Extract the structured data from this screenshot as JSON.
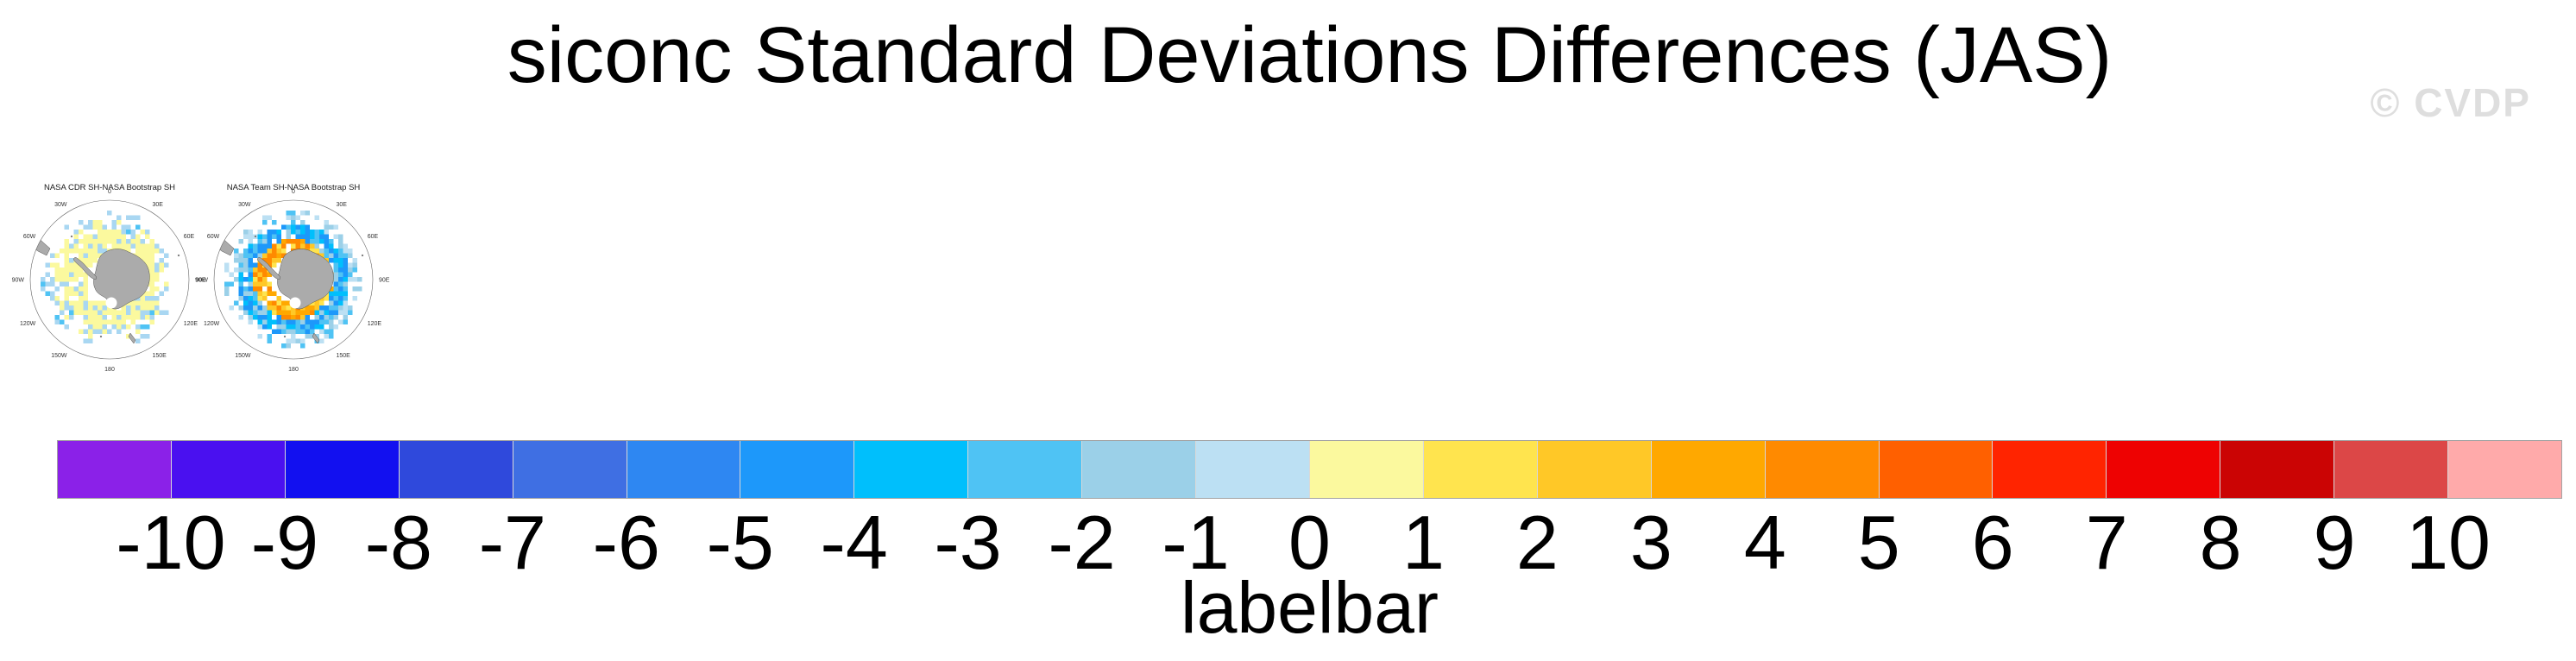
{
  "title": "siconc Standard Deviations Differences (JAS)",
  "watermark": "© CVDP",
  "land_color": "#ABABAB",
  "panels": [
    {
      "title": "NASA CDR SH-NASA Bootstrap SH",
      "bands": [
        {
          "r0": 0.3,
          "r1": 0.62,
          "density": 0.92,
          "colors": [
            [
              "#FBF99E",
              0.85
            ],
            [
              "#A9D7F2",
              0.15
            ]
          ]
        },
        {
          "r0": 0.62,
          "r1": 0.76,
          "density": 0.55,
          "colors": [
            [
              "#FBF99E",
              0.5
            ],
            [
              "#A9D7F2",
              0.45
            ],
            [
              "#4FC3F4",
              0.05
            ]
          ]
        },
        {
          "r0": 0.76,
          "r1": 0.88,
          "density": 0.18,
          "colors": [
            [
              "#A9D7F2",
              0.9
            ],
            [
              "#4FC3F4",
              0.1
            ]
          ]
        }
      ]
    },
    {
      "title": "NASA Team SH-NASA Bootstrap SH",
      "bands": [
        {
          "r0": 0.28,
          "r1": 0.5,
          "density": 0.95,
          "colors": [
            [
              "#FFC827",
              0.35
            ],
            [
              "#FFA800",
              0.25
            ],
            [
              "#FFE44E",
              0.25
            ],
            [
              "#FF8A00",
              0.15
            ]
          ],
          "bias": {
            "color": "#FF8A00",
            "p": 0.45
          }
        },
        {
          "r0": 0.5,
          "r1": 0.7,
          "density": 0.92,
          "colors": [
            [
              "#1D98FA",
              0.35
            ],
            [
              "#00BFFC",
              0.25
            ],
            [
              "#4FC3F4",
              0.25
            ],
            [
              "#9BD0E8",
              0.15
            ]
          ]
        },
        {
          "r0": 0.7,
          "r1": 0.86,
          "density": 0.45,
          "colors": [
            [
              "#9BD0E8",
              0.4
            ],
            [
              "#BCE0F3",
              0.4
            ],
            [
              "#4FC3F4",
              0.2
            ]
          ]
        }
      ]
    }
  ],
  "map_ticks": [
    {
      "label": "0",
      "deg": 0
    },
    {
      "label": "30E",
      "deg": 30
    },
    {
      "label": "60E",
      "deg": 60
    },
    {
      "label": "90E",
      "deg": 90
    },
    {
      "label": "120E",
      "deg": 120
    },
    {
      "label": "150E",
      "deg": 150
    },
    {
      "label": "180",
      "deg": 180
    },
    {
      "label": "150W",
      "deg": 210
    },
    {
      "label": "120W",
      "deg": 240
    },
    {
      "label": "90W",
      "deg": 270
    },
    {
      "label": "60W",
      "deg": 300
    },
    {
      "label": "30W",
      "deg": 330
    }
  ],
  "labelbar": {
    "caption": "labelbar",
    "tick_labels": [
      "-10",
      "-9",
      "-8",
      "-7",
      "-6",
      "-5",
      "-4",
      "-3",
      "-2",
      "-1",
      "0",
      "1",
      "2",
      "3",
      "4",
      "5",
      "6",
      "7",
      "8",
      "9",
      "10"
    ],
    "colors": [
      "#8B21E8",
      "#4A10F0",
      "#1210F0",
      "#2F49DC",
      "#3F6FE3",
      "#2E87F2",
      "#1D98FA",
      "#00BFFC",
      "#4FC3F4",
      "#9BD0E8",
      "#BCE0F3",
      "#FBF99E",
      "#FFE44E",
      "#FFC827",
      "#FFA800",
      "#FF8A00",
      "#FF6000",
      "#FF2400",
      "#EE0202",
      "#CB0404",
      "#DC4747",
      "#FFAAAA"
    ]
  },
  "chart_data": {
    "type": "heatmap",
    "title": "siconc Standard Deviations Differences (JAS)",
    "panels": [
      "NASA CDR SH-NASA Bootstrap SH",
      "NASA Team SH-NASA Bootstrap SH"
    ],
    "colorbar_label": "labelbar",
    "colorbar_ticks": [
      -10,
      -9,
      -8,
      -7,
      -6,
      -5,
      -4,
      -3,
      -2,
      -1,
      0,
      1,
      2,
      3,
      4,
      5,
      6,
      7,
      8,
      9,
      10
    ],
    "colorbar_colors": [
      "#8B21E8",
      "#4A10F0",
      "#1210F0",
      "#2F49DC",
      "#3F6FE3",
      "#2E87F2",
      "#1D98FA",
      "#00BFFC",
      "#4FC3F4",
      "#9BD0E8",
      "#BCE0F3",
      "#FBF99E",
      "#FFE44E",
      "#FFC827",
      "#FFA800",
      "#FF8A00",
      "#FF6000",
      "#FF2400",
      "#EE0202",
      "#CB0404",
      "#DC4747",
      "#FFAAAA"
    ],
    "legend_position": "bottom",
    "panel_summaries": [
      "mostly pale-yellow ring (0 to 1) with scattered light-blue cells (-1 to 0) around Antarctica",
      "inner orange/gold ring (1 to 5) surrounded by blue ring (-5 to -1) with light-blue outer fringe"
    ]
  }
}
